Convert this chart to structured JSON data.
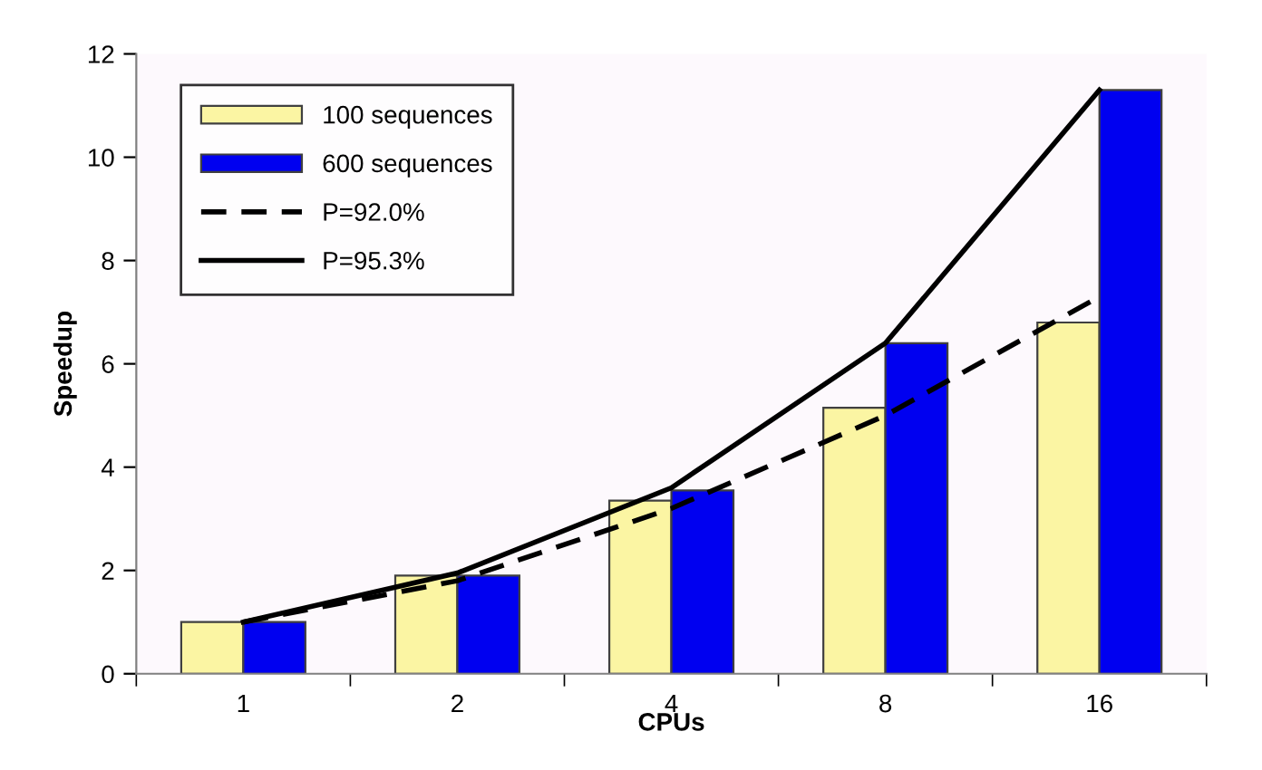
{
  "chart_data": {
    "type": "bar",
    "xlabel": "CPUs",
    "ylabel": "Speedup",
    "categories": [
      "1",
      "2",
      "4",
      "8",
      "16"
    ],
    "series": [
      {
        "name": "100 sequences",
        "color": "#fbf5a3",
        "values": [
          1.0,
          1.9,
          3.35,
          5.15,
          6.8
        ]
      },
      {
        "name": "600 sequences",
        "color": "#0000f0",
        "values": [
          1.0,
          1.9,
          3.55,
          6.4,
          11.3
        ]
      },
      {
        "name": "P=92.0%",
        "type": "line",
        "color": "#000000",
        "line_style": "dashed",
        "values": [
          1.0,
          1.8,
          3.2,
          5.0,
          7.3
        ]
      },
      {
        "name": "P=95.3%",
        "type": "line",
        "color": "#000000",
        "line_style": "solid",
        "values": [
          1.0,
          1.95,
          3.6,
          6.4,
          11.3
        ]
      }
    ],
    "ylim": [
      0,
      12
    ],
    "yticks": [
      0,
      2,
      4,
      6,
      8,
      10,
      12
    ],
    "grid": false,
    "legend": "top left",
    "marker": "none"
  }
}
